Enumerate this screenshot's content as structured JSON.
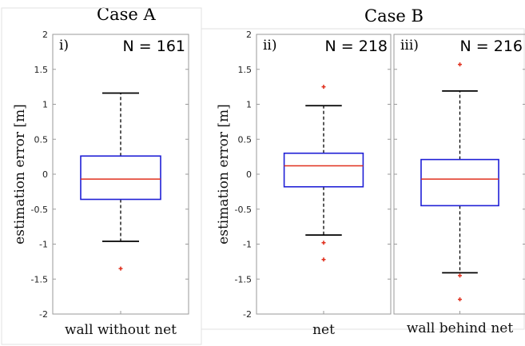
{
  "chart_data": [
    {
      "type": "boxplot",
      "case_title": "Case A",
      "panel_label": "i)",
      "n_label": "N = 161",
      "category": "wall without net",
      "ylabel": "estimation error [m]",
      "ylim": [
        -2,
        2
      ],
      "yticks": [
        "-2",
        "-1.5",
        "-1",
        "-0.5",
        "0",
        "0.5",
        "1",
        "1.5",
        "2"
      ],
      "box": {
        "q1": -0.36,
        "median": -0.07,
        "q3": 0.26,
        "whisker_low": -0.96,
        "whisker_high": 1.16
      },
      "outliers": [
        -1.35
      ],
      "colors": {
        "box": "#1f1fd6",
        "median": "#e0301e",
        "outlier": "#e0301e"
      }
    },
    {
      "type": "boxplot",
      "case_title": "Case B",
      "panel_label": "ii)",
      "n_label": "N = 218",
      "category": "net",
      "ylabel": "estimation error [m]",
      "ylim": [
        -2,
        2
      ],
      "yticks": [
        "-2",
        "-1.5",
        "-1",
        "-0.5",
        "0",
        "0.5",
        "1",
        "1.5",
        "2"
      ],
      "box": {
        "q1": -0.18,
        "median": 0.12,
        "q3": 0.3,
        "whisker_low": -0.87,
        "whisker_high": 0.98
      },
      "outliers": [
        1.25,
        -0.98,
        -1.22
      ],
      "colors": {
        "box": "#1f1fd6",
        "median": "#e0301e",
        "outlier": "#e0301e"
      }
    },
    {
      "type": "boxplot",
      "panel_label": "iii)",
      "n_label": "N = 216",
      "category": "wall behind net",
      "ylim": [
        -2,
        2
      ],
      "box": {
        "q1": -0.45,
        "median": -0.07,
        "q3": 0.21,
        "whisker_low": -1.41,
        "whisker_high": 1.19
      },
      "outliers": [
        1.57,
        -1.45,
        -1.79
      ],
      "colors": {
        "box": "#1f1fd6",
        "median": "#e0301e",
        "outlier": "#e0301e"
      }
    }
  ]
}
